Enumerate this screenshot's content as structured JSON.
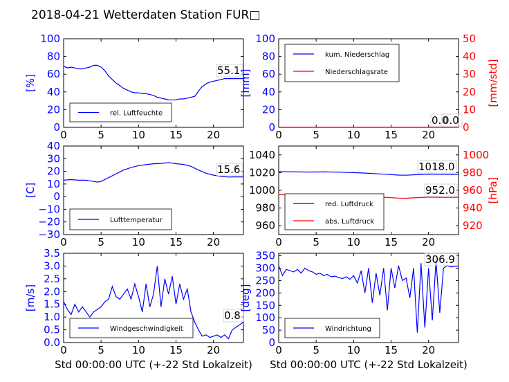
{
  "figure_title": "2018-04-21 Wetterdaten Station FUR□",
  "xlabel": "Std 00:00:00 UTC (+-22 Std Lokalzeit)",
  "colors": {
    "blue": "#0000ff",
    "red": "#ff0000",
    "black": "#000000"
  },
  "chart_data": [
    {
      "id": "humidity",
      "type": "line",
      "ylabel": "[%]",
      "xlim": [
        0,
        24
      ],
      "ylim": [
        0,
        100
      ],
      "xticks": [
        "0",
        "5",
        "10",
        "15",
        "20"
      ],
      "yticks": [
        "0",
        "20",
        "40",
        "60",
        "80",
        "100"
      ],
      "legend": {
        "position": "bottom-left",
        "entries": [
          "rel. Luftfeuchte"
        ]
      },
      "annotation": "55.1",
      "series": [
        {
          "name": "rel. Luftfeuchte",
          "color": "#0000ff",
          "x": [
            0,
            0.5,
            1,
            1.5,
            2,
            2.5,
            3,
            3.5,
            4,
            4.5,
            5,
            5.5,
            6,
            6.5,
            7,
            7.5,
            8,
            8.5,
            9,
            9.5,
            10,
            10.5,
            11,
            11.5,
            12,
            12.5,
            13,
            13.5,
            14,
            14.5,
            15,
            15.5,
            16,
            16.5,
            17,
            17.5,
            18,
            18.5,
            19,
            19.5,
            20,
            20.5,
            21,
            21.5,
            22,
            22.5,
            23,
            23.5,
            24
          ],
          "y": [
            69,
            67,
            68,
            67,
            66,
            66,
            67,
            68,
            70,
            70,
            68,
            64,
            58,
            54,
            50,
            47,
            44,
            42,
            40,
            39,
            39,
            38,
            38,
            37,
            36,
            34,
            33,
            32,
            31,
            31,
            31,
            32,
            32,
            33,
            34,
            35,
            41,
            46,
            49,
            51,
            52,
            53,
            54,
            55,
            55,
            55,
            55,
            55,
            55
          ]
        }
      ]
    },
    {
      "id": "precipitation",
      "type": "line",
      "ylabel": "[mm]",
      "y2label": "[mm/std]",
      "xlim": [
        0,
        24
      ],
      "ylim": [
        0,
        100
      ],
      "y2lim": [
        0,
        50
      ],
      "xticks": [
        "0",
        "5",
        "10",
        "15",
        "20"
      ],
      "yticks": [
        "0",
        "20",
        "40",
        "60",
        "80",
        "100"
      ],
      "y2ticks": [
        "0",
        "10",
        "20",
        "30",
        "40",
        "50"
      ],
      "legend": {
        "position": "top-left",
        "entries": [
          "kum. Niederschlag",
          "Niederschlagsrate"
        ]
      },
      "annotations": [
        "0.0",
        "0.0"
      ],
      "series": [
        {
          "name": "kum. Niederschlag",
          "color": "#0000ff",
          "x": [
            0,
            24
          ],
          "y": [
            0,
            0
          ]
        },
        {
          "name": "Niederschlagsrate",
          "color": "#ff0000",
          "axis": "right",
          "x": [
            0,
            24
          ],
          "y": [
            0,
            0
          ]
        }
      ]
    },
    {
      "id": "temperature",
      "type": "line",
      "ylabel": "[C]",
      "xlim": [
        0,
        24
      ],
      "ylim": [
        -30,
        40
      ],
      "xticks": [
        "0",
        "5",
        "10",
        "15",
        "20"
      ],
      "yticks": [
        "−30",
        "−20",
        "−10",
        "0",
        "10",
        "20",
        "30",
        "40"
      ],
      "legend": {
        "position": "bottom-left",
        "entries": [
          "Lufttemperatur"
        ]
      },
      "annotation": "15.6",
      "series": [
        {
          "name": "Lufttemperatur",
          "color": "#0000ff",
          "x": [
            0,
            1,
            2,
            3,
            4,
            4.5,
            5,
            6,
            7,
            8,
            9,
            10,
            11,
            12,
            13,
            14,
            14.5,
            15,
            16,
            17,
            18,
            19,
            20,
            21,
            22,
            23,
            24
          ],
          "y": [
            13,
            13.5,
            13,
            13,
            12,
            11.5,
            12,
            15,
            18,
            21,
            23,
            24.5,
            25.3,
            26,
            26.3,
            26.8,
            26.5,
            26,
            25.5,
            24,
            21,
            18.5,
            17,
            16,
            15.5,
            15.6,
            15.6
          ]
        }
      ]
    },
    {
      "id": "pressure",
      "type": "line",
      "y2label": "[hPa]",
      "xlim": [
        0,
        24
      ],
      "ylim": [
        950,
        1050
      ],
      "y2lim": [
        910,
        1010
      ],
      "xticks": [
        "0",
        "5",
        "10",
        "15",
        "20"
      ],
      "yticks": [
        "960",
        "980",
        "1000",
        "1020",
        "1040"
      ],
      "y2ticks": [
        "920",
        "940",
        "960",
        "980",
        "1000"
      ],
      "legend": {
        "position": "bottom-left",
        "entries": [
          "red. Luftdruck",
          "abs. Luftdruck"
        ]
      },
      "annotations": [
        "1018.0",
        "952.0"
      ],
      "series": [
        {
          "name": "red. Luftdruck",
          "color": "#0000ff",
          "x": [
            0,
            2,
            4,
            6,
            8,
            10,
            12,
            14,
            16,
            17,
            18,
            20,
            22,
            24
          ],
          "y": [
            1021,
            1020.8,
            1020.6,
            1020.8,
            1020.5,
            1020,
            1019.2,
            1018.2,
            1017.2,
            1017,
            1017.5,
            1018.3,
            1018,
            1018
          ]
        },
        {
          "name": "abs. Luftdruck",
          "color": "#ff0000",
          "axis": "right",
          "x": [
            0,
            2,
            4,
            6,
            8,
            10,
            12,
            14,
            16,
            17,
            18,
            20,
            22,
            24
          ],
          "y": [
            955,
            954.8,
            954.6,
            954.8,
            954.5,
            954,
            953.2,
            952.2,
            951.2,
            951,
            951.5,
            952.3,
            952,
            952
          ]
        }
      ]
    },
    {
      "id": "windspeed",
      "type": "line",
      "ylabel": "[m/s]",
      "xlim": [
        0,
        24
      ],
      "ylim": [
        0,
        3.5
      ],
      "xticks": [
        "0",
        "5",
        "10",
        "15",
        "20"
      ],
      "yticks": [
        "0.0",
        "0.5",
        "1.0",
        "1.5",
        "2.0",
        "2.5",
        "3.0",
        "3.5"
      ],
      "legend": {
        "position": "bottom-left",
        "entries": [
          "Windgeschwindigkeit"
        ]
      },
      "annotation": "0.8",
      "series": [
        {
          "name": "Windgeschwindigkeit",
          "color": "#0000ff",
          "x": [
            0,
            0.5,
            1,
            1.5,
            2,
            2.5,
            3,
            3.5,
            4,
            4.5,
            5,
            5.5,
            6,
            6.5,
            7,
            7.5,
            8,
            8.5,
            9,
            9.5,
            10,
            10.5,
            11,
            11.5,
            12,
            12.5,
            13,
            13.5,
            14,
            14.5,
            15,
            15.5,
            16,
            16.5,
            17,
            17.5,
            18,
            18.5,
            19,
            19.5,
            20,
            20.5,
            21,
            21.5,
            22,
            22.5,
            23,
            23.5,
            24
          ],
          "y": [
            1.6,
            1.3,
            1.1,
            1.5,
            1.2,
            1.4,
            1.2,
            1.0,
            1.2,
            1.3,
            1.4,
            1.6,
            1.7,
            2.2,
            1.8,
            1.7,
            1.9,
            2.1,
            1.7,
            2.3,
            1.8,
            1.2,
            2.3,
            1.4,
            1.9,
            3.0,
            1.4,
            2.5,
            1.9,
            2.6,
            1.5,
            2.3,
            1.7,
            2.1,
            1.2,
            0.8,
            0.5,
            0.25,
            0.3,
            0.2,
            0.25,
            0.3,
            0.2,
            0.3,
            0.15,
            0.5,
            0.6,
            0.7,
            0.8
          ]
        }
      ]
    },
    {
      "id": "winddirection",
      "type": "line",
      "ylabel": "[deg]",
      "xlim": [
        0,
        24
      ],
      "ylim": [
        0,
        360
      ],
      "xticks": [
        "0",
        "5",
        "10",
        "15",
        "20"
      ],
      "yticks": [
        "0",
        "50",
        "100",
        "150",
        "200",
        "250",
        "300",
        "350"
      ],
      "legend": {
        "position": "bottom-left",
        "entries": [
          "Windrichtung"
        ]
      },
      "annotation": "306.9",
      "series": [
        {
          "name": "Windrichtung",
          "color": "#0000ff",
          "x": [
            0,
            0.5,
            1,
            1.5,
            2,
            2.5,
            3,
            3.5,
            4,
            4.5,
            5,
            5.5,
            6,
            6.5,
            7,
            7.5,
            8,
            8.5,
            9,
            9.5,
            10,
            10.5,
            11,
            11.5,
            12,
            12.5,
            13,
            13.5,
            14,
            14.5,
            15,
            15.5,
            16,
            16.5,
            17,
            17.5,
            18,
            18.5,
            19,
            19.5,
            20,
            20.5,
            21,
            21.5,
            22,
            22.5,
            23,
            23.5,
            24
          ],
          "y": [
            310,
            270,
            295,
            290,
            285,
            295,
            280,
            300,
            290,
            285,
            275,
            280,
            270,
            275,
            265,
            268,
            262,
            258,
            265,
            255,
            270,
            240,
            290,
            200,
            300,
            160,
            280,
            190,
            300,
            130,
            300,
            220,
            310,
            250,
            260,
            180,
            300,
            40,
            320,
            60,
            300,
            90,
            330,
            120,
            300,
            310,
            305,
            308,
            307
          ]
        }
      ]
    }
  ]
}
